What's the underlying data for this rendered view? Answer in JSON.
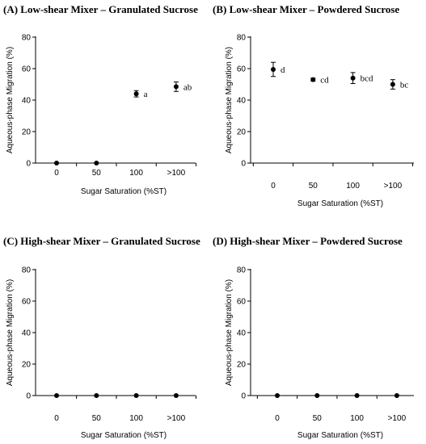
{
  "chart_data": [
    {
      "type": "scatter",
      "title": "(A) Low-shear Mixer – Granulated Sucrose",
      "xlabel": "Sugar Saturation (%ST)",
      "ylabel": "Aqueous-phase Migration (%)",
      "categories": [
        "0",
        "50",
        "100",
        ">100"
      ],
      "ylim": [
        0,
        80
      ],
      "yticks": [
        "0",
        "20",
        "40",
        "60",
        "80"
      ],
      "points": [
        {
          "category": "0",
          "value": 0,
          "error": 0,
          "label": ""
        },
        {
          "category": "50",
          "value": 0,
          "error": 0,
          "label": ""
        },
        {
          "category": "100",
          "value": 44,
          "error": 2,
          "label": "a"
        },
        {
          "category": ">100",
          "value": 48.5,
          "error": 3,
          "label": "ab"
        }
      ]
    },
    {
      "type": "scatter",
      "title": "(B) Low-shear Mixer – Powdered Sucrose",
      "xlabel": "Sugar Saturation (%ST)",
      "ylabel": "Aqueous-phase Migration (%)",
      "categories": [
        "0",
        "50",
        "100",
        ">100"
      ],
      "ylim": [
        0,
        80
      ],
      "yticks": [
        "0",
        "20",
        "40",
        "60",
        "80"
      ],
      "points": [
        {
          "category": "0",
          "value": 59.5,
          "error": 4.5,
          "label": "d"
        },
        {
          "category": "50",
          "value": 53,
          "error": 1,
          "label": "cd"
        },
        {
          "category": "100",
          "value": 54,
          "error": 3.5,
          "label": "bcd"
        },
        {
          "category": ">100",
          "value": 50,
          "error": 3,
          "label": "bc"
        }
      ]
    },
    {
      "type": "scatter",
      "title": "(C) High-shear Mixer – Granulated Sucrose",
      "xlabel": "Sugar Saturation (%ST)",
      "ylabel": "Aqueous-phase Migration (%)",
      "categories": [
        "0",
        "50",
        "100",
        ">100"
      ],
      "ylim": [
        0,
        80
      ],
      "yticks": [
        "0",
        "20",
        "40",
        "60",
        "80"
      ],
      "points": [
        {
          "category": "0",
          "value": 0,
          "error": 0,
          "label": ""
        },
        {
          "category": "50",
          "value": 0,
          "error": 0,
          "label": ""
        },
        {
          "category": "100",
          "value": 0,
          "error": 0,
          "label": ""
        },
        {
          "category": ">100",
          "value": 0,
          "error": 0,
          "label": ""
        }
      ]
    },
    {
      "type": "scatter",
      "title": "(D) High-shear Mixer – Powdered Sucrose",
      "xlabel": "Sugar Saturation (%ST)",
      "ylabel": "Aqueous-phase Migration (%)",
      "categories": [
        "0",
        "50",
        "100",
        ">100"
      ],
      "ylim": [
        0,
        80
      ],
      "yticks": [
        "0",
        "20",
        "40",
        "60",
        "80"
      ],
      "points": [
        {
          "category": "0",
          "value": 0,
          "error": 0,
          "label": ""
        },
        {
          "category": "50",
          "value": 0,
          "error": 0,
          "label": ""
        },
        {
          "category": "100",
          "value": 0,
          "error": 0,
          "label": ""
        },
        {
          "category": ">100",
          "value": 0,
          "error": 0,
          "label": ""
        }
      ]
    }
  ]
}
